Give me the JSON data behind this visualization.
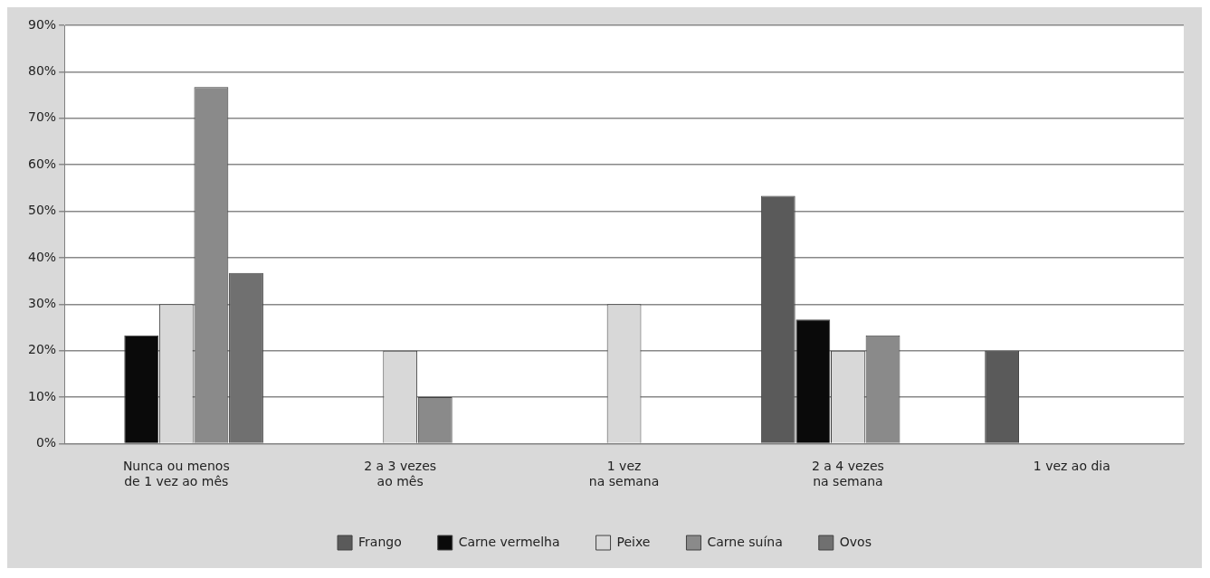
{
  "chart_data": {
    "type": "bar",
    "categories": [
      "Nunca ou menos\nde 1 vez ao mês",
      "2 a 3 vezes\nao mês",
      "1 vez\nna semana",
      "2 a 4 vezes\nna semana",
      "1 vez ao dia"
    ],
    "series": [
      {
        "name": "Frango",
        "color": "#5a5a5a",
        "values": [
          null,
          null,
          null,
          53.3,
          20
        ]
      },
      {
        "name": "Carne vermelha",
        "color": "#0a0a0a",
        "values": [
          23.3,
          null,
          null,
          26.7,
          null
        ]
      },
      {
        "name": "Peixe",
        "color": "#d8d8d8",
        "values": [
          30,
          20,
          30,
          20,
          null
        ]
      },
      {
        "name": "Carne suína",
        "color": "#8a8a8a",
        "values": [
          76.7,
          10,
          null,
          23.3,
          null
        ]
      },
      {
        "name": "Ovos",
        "color": "#707070",
        "values": [
          36.7,
          null,
          null,
          null,
          null
        ]
      }
    ],
    "ylim": [
      0,
      90
    ],
    "yticks": [
      {
        "value": 0,
        "label": "0%"
      },
      {
        "value": 10,
        "label": "10%"
      },
      {
        "value": 20,
        "label": "20%"
      },
      {
        "value": 30,
        "label": "30%"
      },
      {
        "value": 40,
        "label": "40%"
      },
      {
        "value": 50,
        "label": "50%"
      },
      {
        "value": 60,
        "label": "60%"
      },
      {
        "value": 70,
        "label": "70%"
      },
      {
        "value": 80,
        "label": "80%"
      },
      {
        "value": 90,
        "label": "90%"
      }
    ],
    "grid": "y",
    "legend": "bottom"
  }
}
